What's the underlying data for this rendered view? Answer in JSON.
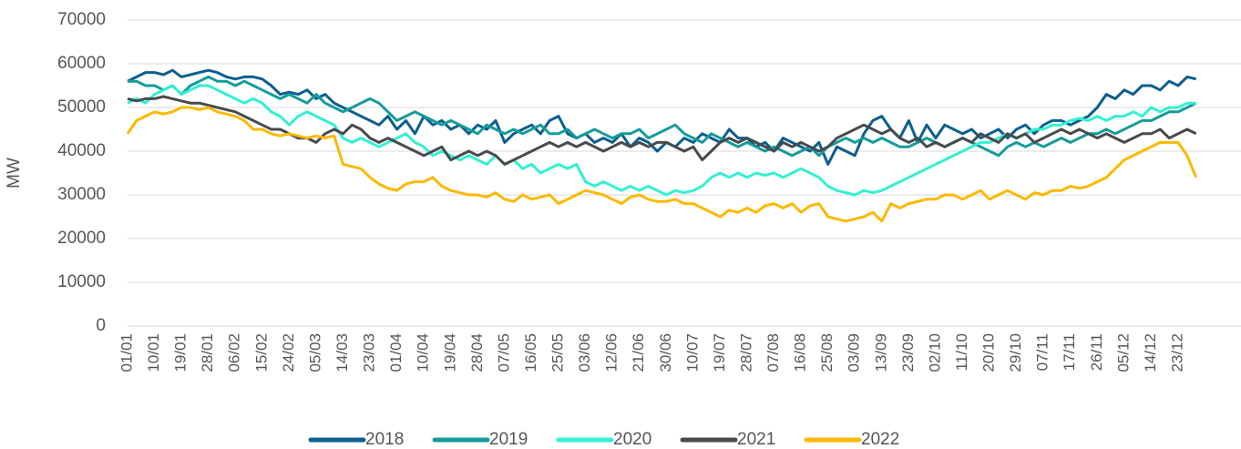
{
  "chart_data": {
    "type": "line",
    "y_label": "MW",
    "categories": [
      "01/01",
      null,
      null,
      "10/01",
      null,
      null,
      "19/01",
      null,
      null,
      "28/01",
      null,
      null,
      "06/02",
      null,
      null,
      "15/02",
      null,
      null,
      "24/02",
      null,
      null,
      "05/03",
      null,
      null,
      "14/03",
      null,
      null,
      "23/03",
      null,
      null,
      "01/04",
      null,
      null,
      "10/04",
      null,
      null,
      "19/04",
      null,
      null,
      "28/04",
      null,
      null,
      "07/05",
      null,
      null,
      "16/05",
      null,
      null,
      "25/05",
      null,
      null,
      "03/06",
      null,
      null,
      "12/06",
      null,
      null,
      "21/06",
      null,
      null,
      "30/06",
      null,
      null,
      "10/07",
      null,
      null,
      "19/07",
      null,
      null,
      "28/07",
      null,
      null,
      "07/08",
      null,
      null,
      "16/08",
      null,
      null,
      "25/08",
      null,
      null,
      "03/09",
      null,
      null,
      "13/09",
      null,
      null,
      "23/09",
      null,
      null,
      "02/10",
      null,
      null,
      "11/10",
      null,
      null,
      "20/10",
      null,
      null,
      "29/10",
      null,
      null,
      "07/11",
      null,
      null,
      "17/11",
      null,
      null,
      "26/11",
      null,
      null,
      "05/12",
      null,
      null,
      "14/12",
      null,
      null,
      "23/12",
      null,
      null
    ],
    "series": [
      {
        "name": "2018",
        "color": "#0b5f8e",
        "values": [
          56000,
          57000,
          58000,
          58000,
          57500,
          58500,
          57000,
          57500,
          58000,
          58500,
          58000,
          57000,
          56500,
          57000,
          57000,
          56500,
          55000,
          53000,
          53500,
          53000,
          54000,
          52000,
          53000,
          51000,
          50000,
          49000,
          48000,
          47000,
          46000,
          48000,
          45000,
          47000,
          44000,
          48000,
          46000,
          47000,
          45000,
          46000,
          44000,
          46000,
          45000,
          47000,
          42000,
          44000,
          45000,
          46000,
          44000,
          47000,
          48000,
          44000,
          43000,
          44000,
          42000,
          43000,
          42000,
          44000,
          41000,
          43000,
          42000,
          40000,
          42000,
          41000,
          43000,
          42000,
          44000,
          43000,
          42000,
          45000,
          43000,
          43000,
          41000,
          42000,
          40000,
          43000,
          42000,
          41000,
          40000,
          42000,
          37000,
          41000,
          40000,
          39000,
          44000,
          47000,
          48000,
          45000,
          43000,
          47000,
          42000,
          46000,
          43000,
          46000,
          45000,
          44000,
          45000,
          43000,
          44000,
          45000,
          43000,
          45000,
          46000,
          44000,
          46000,
          47000,
          47000,
          46000,
          47000,
          48000,
          50000,
          53000,
          52000,
          54000,
          53000,
          55000,
          55000,
          54000,
          56000,
          55000,
          57000,
          56500
        ]
      },
      {
        "name": "2019",
        "color": "#149c9a",
        "values": [
          56000,
          56000,
          55000,
          55000,
          54000,
          55000,
          53000,
          55000,
          56000,
          57000,
          56000,
          56000,
          55000,
          56000,
          55000,
          54000,
          53000,
          52000,
          53000,
          52000,
          51000,
          53000,
          51000,
          50000,
          49000,
          50000,
          51000,
          52000,
          51000,
          49000,
          47000,
          48000,
          49000,
          48000,
          47000,
          46000,
          47000,
          46000,
          45000,
          44000,
          46000,
          45000,
          44000,
          45000,
          44000,
          45000,
          46000,
          44000,
          44000,
          45000,
          43000,
          44000,
          45000,
          44000,
          43000,
          44000,
          44000,
          45000,
          43000,
          44000,
          45000,
          46000,
          44000,
          43000,
          42000,
          44000,
          43000,
          42000,
          41000,
          42000,
          41000,
          40000,
          41000,
          40000,
          39000,
          40000,
          41000,
          39000,
          41000,
          42000,
          43000,
          42000,
          43000,
          42000,
          43000,
          42000,
          41000,
          41000,
          42000,
          43000,
          42000,
          41000,
          42000,
          43000,
          42000,
          41000,
          40000,
          39000,
          41000,
          42000,
          41000,
          42000,
          41000,
          42000,
          43000,
          42000,
          43000,
          44000,
          44000,
          45000,
          44000,
          45000,
          46000,
          47000,
          47000,
          48000,
          49000,
          49000,
          50000,
          51000
        ]
      },
      {
        "name": "2020",
        "color": "#33f0d2",
        "values": [
          51000,
          52000,
          51000,
          53000,
          54000,
          55000,
          53000,
          54000,
          55000,
          55000,
          54000,
          53000,
          52000,
          51000,
          52000,
          51000,
          49000,
          48000,
          46000,
          48000,
          49000,
          48000,
          47000,
          46000,
          43000,
          42000,
          43000,
          42000,
          41000,
          42000,
          43000,
          44000,
          42000,
          41000,
          39000,
          40000,
          39000,
          38000,
          39000,
          38000,
          37000,
          39000,
          37000,
          38000,
          36000,
          37000,
          35000,
          36000,
          37000,
          36000,
          37000,
          33000,
          32000,
          33000,
          32000,
          31000,
          32000,
          31000,
          32000,
          31000,
          30000,
          31000,
          30500,
          31000,
          32000,
          34000,
          35000,
          34000,
          35000,
          34000,
          35000,
          34500,
          35000,
          34000,
          35000,
          36000,
          35000,
          34000,
          32000,
          31000,
          30500,
          30000,
          31000,
          30500,
          31000,
          32000,
          33000,
          34000,
          35000,
          36000,
          37000,
          38000,
          39000,
          40000,
          41000,
          42000,
          42000,
          43000,
          44000,
          43000,
          44000,
          45000,
          45000,
          46000,
          46000,
          47000,
          47500,
          47000,
          48000,
          47000,
          48000,
          48000,
          49000,
          48000,
          50000,
          49000,
          50000,
          50000,
          51000,
          51000
        ]
      },
      {
        "name": "2021",
        "color": "#474b4f",
        "values": [
          52000,
          51500,
          52000,
          52000,
          52500,
          52000,
          51500,
          51000,
          51000,
          50500,
          50000,
          49500,
          49000,
          48000,
          47000,
          46000,
          45000,
          45000,
          44000,
          43000,
          43000,
          42000,
          44000,
          45000,
          44000,
          46000,
          45000,
          43000,
          42000,
          43000,
          42000,
          41000,
          40000,
          39000,
          40000,
          41000,
          38000,
          39000,
          40000,
          39000,
          40000,
          39000,
          37000,
          38000,
          39000,
          40000,
          41000,
          42000,
          41000,
          42000,
          41000,
          42000,
          41000,
          40000,
          41000,
          42000,
          41000,
          42000,
          41000,
          42000,
          42000,
          41000,
          40000,
          41000,
          38000,
          40000,
          42000,
          43000,
          42000,
          43000,
          42000,
          41000,
          40000,
          42000,
          41000,
          42000,
          41000,
          40000,
          41000,
          43000,
          44000,
          45000,
          46000,
          45000,
          44000,
          45000,
          43000,
          42000,
          43000,
          41000,
          42000,
          41000,
          42000,
          43000,
          42000,
          44000,
          43000,
          42000,
          44000,
          43000,
          44000,
          42000,
          43000,
          44000,
          45000,
          44000,
          45000,
          44000,
          43000,
          44000,
          43000,
          42000,
          43000,
          44000,
          44000,
          45000,
          43000,
          44000,
          45000,
          44000
        ]
      },
      {
        "name": "2022",
        "color": "#fbb900",
        "values": [
          44000,
          47000,
          48000,
          49000,
          48500,
          49000,
          50000,
          50000,
          49500,
          50000,
          49000,
          48500,
          48000,
          47000,
          45000,
          45000,
          44000,
          43500,
          44000,
          43500,
          43000,
          43500,
          43000,
          43500,
          37000,
          36500,
          36000,
          34000,
          32500,
          31500,
          31000,
          32500,
          33000,
          33000,
          34000,
          32000,
          31000,
          30500,
          30000,
          30000,
          29500,
          30500,
          29000,
          28500,
          30000,
          29000,
          29500,
          30000,
          28000,
          29000,
          30000,
          31000,
          30500,
          30000,
          29000,
          28000,
          29500,
          30000,
          29000,
          28500,
          28500,
          29000,
          28000,
          28000,
          27000,
          26000,
          25000,
          26500,
          26000,
          27000,
          26000,
          27500,
          28000,
          27000,
          28000,
          26000,
          27500,
          28000,
          25000,
          24500,
          24000,
          24500,
          25000,
          26000,
          24000,
          28000,
          27000,
          28000,
          28500,
          29000,
          29000,
          30000,
          30000,
          29000,
          30000,
          31000,
          29000,
          30000,
          31000,
          30000,
          29000,
          30500,
          30000,
          31000,
          31000,
          32000,
          31500,
          32000,
          33000,
          34000,
          36000,
          38000,
          39000,
          40000,
          41000,
          42000,
          42000,
          42000,
          39000,
          34000
        ]
      }
    ],
    "ylim": [
      0,
      70000
    ],
    "yticks": [
      0,
      10000,
      20000,
      30000,
      40000,
      50000,
      60000,
      70000
    ],
    "grid": true,
    "legend": "bottom"
  }
}
